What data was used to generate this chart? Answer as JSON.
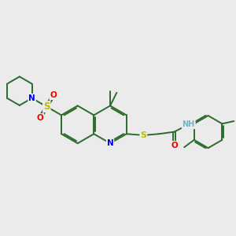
{
  "background_color": "#ebebeb",
  "bond_color": "#2d6b2d",
  "atom_colors": {
    "N": "#0000ee",
    "S": "#bbbb00",
    "O": "#ee0000",
    "H": "#7ab0c8",
    "C": "#2d6b2d"
  },
  "figsize": [
    3.0,
    3.0
  ],
  "dpi": 100
}
